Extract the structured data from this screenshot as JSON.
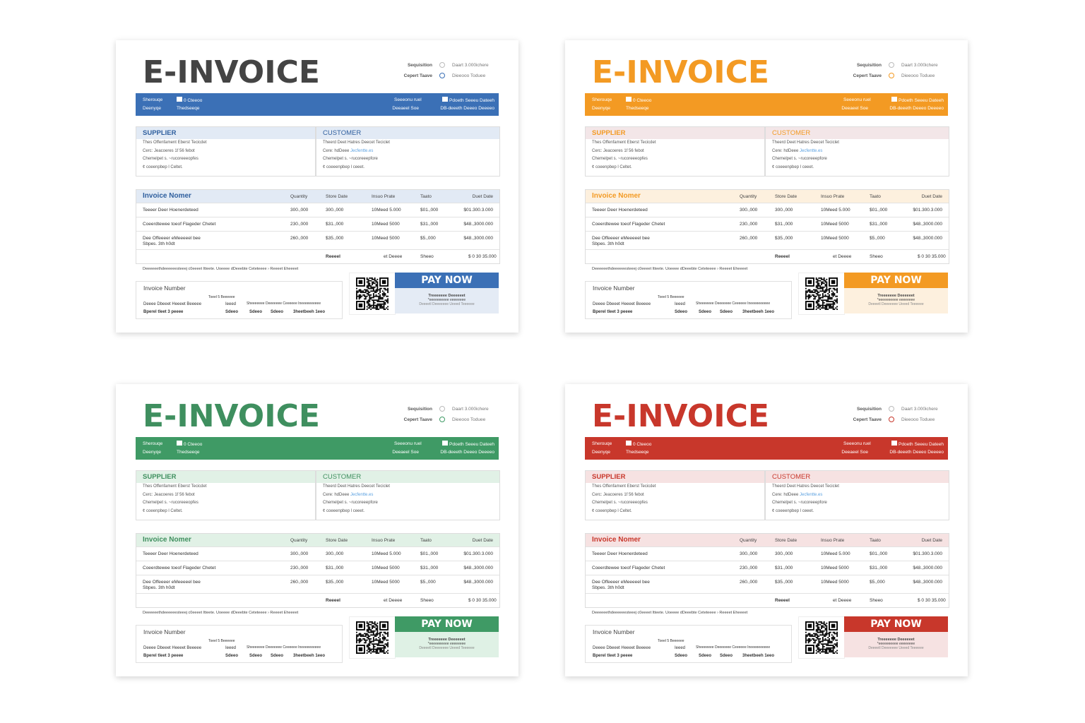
{
  "invoice": {
    "title": "E-INVOICE",
    "meta": [
      {
        "label": "Sequisition",
        "value": "Daart 3.000ichere"
      },
      {
        "label": "Cepert Taave",
        "value": "Dieeooo Toduee"
      }
    ],
    "band": {
      "left": [
        [
          "Sherouqe",
          "0 Cteeoo"
        ],
        [
          "Deenyqe",
          "Thedseeqe"
        ]
      ],
      "right": [
        [
          "Seeeonu ruel",
          "Pdoeth Seeeu Dateeh"
        ],
        [
          "Deeaeel Soe",
          "DB-deeeth Deeeo Deeeeo"
        ]
      ]
    },
    "supplier": {
      "heading": "SUPPLIER",
      "lines": [
        "Thes Offenfament Eberst Tecicdet",
        "Cerc: Jeacoeres 1f 56 febot",
        "Chemelpet s. ~rucoreeeopfes",
        "¢ coeenpbep l Celtet."
      ]
    },
    "customer": {
      "heading": "CUSTOMER",
      "lines": [
        "Theerd Deet Hatres Deecet Teciclet",
        "Cere: hdDeee",
        "Chemelpet s. ~rucoreeepfore",
        "¢ coeeenpbep l ceeet."
      ],
      "link": "Jecfentte.es"
    },
    "table": {
      "headers": [
        "Invoice Nomer",
        "Quantity",
        "Store Date",
        "Insuo Prate",
        "Taato",
        "Duet Date"
      ],
      "rows": [
        [
          "Teeeer Deer Hoenerdeteed",
          "300.,000",
          "300.,000",
          "10Meed 5.000",
          "$01.,000",
          "$01.300.3.000"
        ],
        [
          "Coeerdtewee toeof Flageder Chetet",
          "230.,000",
          "$31.,000",
          "10Meed 5000",
          "$31.,000",
          "$48.,3000.000"
        ],
        [
          "Dee Offeeeer eMeeeeel bee",
          "260.,000",
          "$35.,000",
          "10Meed 5000",
          "$5.,000",
          "$48.,3000.000"
        ]
      ],
      "row3_sub": "Sbpes. 3th h0dt",
      "totals": [
        "Reeeel",
        "et Deeee",
        "Sheeo",
        "$ 0 30 35.000"
      ]
    },
    "note": "Deeeeeethdeeeeeesteeej c0eeeet Itteete. Uoeeee dDeeebte Ceteteeee  ›  Reeeet Eheeeet",
    "summary": {
      "heading": "Invoice Number",
      "sub": "Toeel 5 Beeeeee",
      "row1": [
        "Deeee Dbeeet Heeeet Beeeee",
        "Ieeed",
        "Sheeeeeee Deeeeeee Ceeeeee Ineeeeeeeeee"
      ],
      "row2": [
        "Bperel tleet 3 peeee",
        "Sdeeo",
        "Sdeeo",
        "Sdeeo",
        "3heetbeeh 1eeo"
      ]
    },
    "pay": {
      "button": "PAY NOW",
      "line1": "Treeeeeee Deeeeeet",
      "line2": "*eeeeeeeeee eeeeeeee",
      "line3": "Deeeetl Deeeeeee Ueeed Teeeeee"
    }
  },
  "cards": [
    {
      "variant": "blue",
      "title_color": "#444444",
      "accent": "#3b70b6",
      "tint": "#e2eaf5",
      "party_tint": "#e2eaf5",
      "pay_panel": "#e4ebf5",
      "heading_color": "#2f5f9e"
    },
    {
      "variant": "orange",
      "title_color": "#f39a23",
      "accent": "#f39a23",
      "tint": "#fdf0de",
      "party_tint": "#f3e6e8",
      "pay_panel": "#fdf0de",
      "heading_color": "#f39a23"
    },
    {
      "variant": "green",
      "title_color": "#3f8f5f",
      "accent": "#3f9a65",
      "tint": "#e1f1e6",
      "party_tint": "#e1f1e6",
      "pay_panel": "#dff1e5",
      "heading_color": "#3f8f5f"
    },
    {
      "variant": "red",
      "title_color": "#c8372b",
      "accent": "#c8372b",
      "tint": "#f6e2e2",
      "party_tint": "#f6e2e2",
      "pay_panel": "#f6e2e2",
      "heading_color": "#c8372b"
    }
  ]
}
